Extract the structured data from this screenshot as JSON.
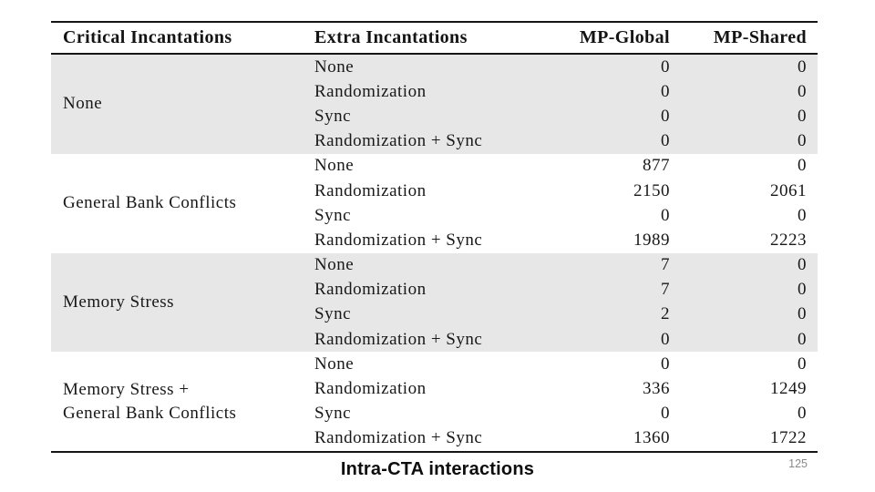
{
  "page": {
    "caption": "Intra-CTA interactions",
    "slide_number": "125"
  },
  "colors": {
    "row_shade": "#e7e7e7",
    "rule": "#161616",
    "table_text": "#181818",
    "caption_text": "#0d0d0d",
    "slide_number_gray": "#8a8a8a"
  },
  "table": {
    "headers": {
      "critical": "Critical Incantations",
      "extra": "Extra Incantations",
      "global": "MP-Global",
      "shared": "MP-Shared"
    },
    "groups": [
      {
        "critical": "None",
        "rows": [
          {
            "extra": "None",
            "global": "0",
            "shared": "0"
          },
          {
            "extra": "Randomization",
            "global": "0",
            "shared": "0"
          },
          {
            "extra": "Sync",
            "global": "0",
            "shared": "0"
          },
          {
            "extra": "Randomization + Sync",
            "global": "0",
            "shared": "0"
          }
        ]
      },
      {
        "critical": "General Bank Conflicts",
        "rows": [
          {
            "extra": "None",
            "global": "877",
            "shared": "0"
          },
          {
            "extra": "Randomization",
            "global": "2150",
            "shared": "2061"
          },
          {
            "extra": "Sync",
            "global": "0",
            "shared": "0"
          },
          {
            "extra": "Randomization + Sync",
            "global": "1989",
            "shared": "2223"
          }
        ]
      },
      {
        "critical": "Memory Stress",
        "rows": [
          {
            "extra": "None",
            "global": "7",
            "shared": "0"
          },
          {
            "extra": "Randomization",
            "global": "7",
            "shared": "0"
          },
          {
            "extra": "Sync",
            "global": "2",
            "shared": "0"
          },
          {
            "extra": "Randomization + Sync",
            "global": "0",
            "shared": "0"
          }
        ]
      },
      {
        "critical": "Memory Stress +\nGeneral Bank Conflicts",
        "rows": [
          {
            "extra": "None",
            "global": "0",
            "shared": "0"
          },
          {
            "extra": "Randomization",
            "global": "336",
            "shared": "1249"
          },
          {
            "extra": "Sync",
            "global": "0",
            "shared": "0"
          },
          {
            "extra": "Randomization + Sync",
            "global": "1360",
            "shared": "1722"
          }
        ]
      }
    ]
  }
}
